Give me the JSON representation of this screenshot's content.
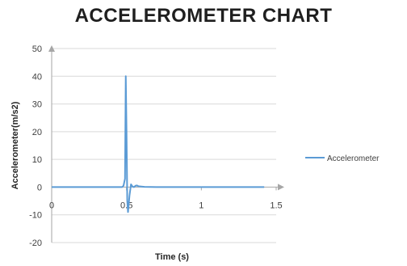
{
  "chart_data": {
    "type": "line",
    "title": "ACCELEROMETER  CHART",
    "xlabel": "Time (s)",
    "ylabel": "Accelerometer(m/s2)",
    "xlim": [
      0,
      1.5
    ],
    "ylim": [
      -20,
      50
    ],
    "x_ticks": [
      0,
      0.5,
      1,
      1.5
    ],
    "x_tick_labels": [
      "0",
      "0.5",
      "1",
      "1.5"
    ],
    "y_ticks": [
      -20,
      -10,
      0,
      10,
      20,
      30,
      40,
      50
    ],
    "y_tick_labels": [
      "-20",
      "-10",
      "0",
      "10",
      "20",
      "30",
      "40",
      "50"
    ],
    "grid": "horizontal",
    "legend_position": "right",
    "series": [
      {
        "name": "Accelerometer",
        "color": "#5b9bd5",
        "x": [
          0,
          0.2,
          0.4,
          0.47,
          0.48,
          0.49,
          0.495,
          0.5,
          0.505,
          0.51,
          0.52,
          0.53,
          0.54,
          0.55,
          0.56,
          0.57,
          0.58,
          0.6,
          0.62,
          0.7,
          0.9,
          1.1,
          1.3,
          1.42
        ],
        "y": [
          0,
          0,
          0,
          0,
          0.5,
          3,
          40,
          20,
          -5,
          -9,
          -3,
          1,
          0.2,
          0,
          0.5,
          0.6,
          0.3,
          0.2,
          0.1,
          0,
          0,
          0,
          0,
          0
        ]
      }
    ]
  }
}
